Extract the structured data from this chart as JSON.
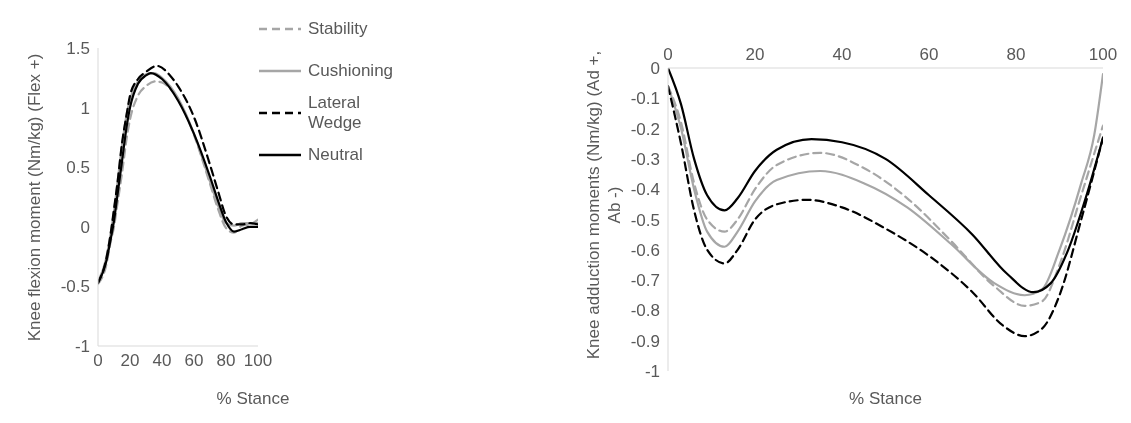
{
  "chart_data": [
    {
      "type": "line",
      "xlabel": "% Stance",
      "ylabel": "Knee flexion moment (Nm/kg) (Flex +)",
      "xlim": [
        0,
        100
      ],
      "xticks": [
        0,
        20,
        40,
        60,
        80,
        100
      ],
      "ylim": [
        -1,
        1.5
      ],
      "yticks": [
        -1,
        -0.5,
        0,
        0.5,
        1,
        1.5
      ],
      "grid": false,
      "legend": "top right",
      "marker": "none",
      "series": [
        {
          "name": "Stability",
          "color": "#a6a6a6",
          "line_style": "dashed",
          "x": [
            0,
            5,
            8,
            10,
            12,
            15,
            18,
            20,
            25,
            30,
            36,
            40,
            50,
            60,
            70,
            75,
            80,
            85,
            90,
            95,
            100
          ],
          "values": [
            -0.48,
            -0.33,
            -0.12,
            0,
            0.18,
            0.45,
            0.75,
            0.9,
            1.1,
            1.18,
            1.22,
            1.21,
            1.07,
            0.77,
            0.36,
            0.15,
            -0.01,
            -0.05,
            0.01,
            0.02,
            0.06
          ]
        },
        {
          "name": "Cushioning",
          "color": "#a6a6a6",
          "line_style": "solid",
          "x": [
            0,
            5,
            8,
            10,
            12,
            15,
            18,
            20,
            25,
            30,
            35,
            40,
            50,
            60,
            70,
            75,
            80,
            85,
            90,
            95,
            100
          ],
          "values": [
            -0.46,
            -0.27,
            -0.05,
            0.13,
            0.35,
            0.68,
            0.95,
            1.07,
            1.22,
            1.28,
            1.29,
            1.25,
            1.08,
            0.78,
            0.38,
            0.18,
            0.03,
            0.01,
            0.03,
            0.03,
            0.03
          ]
        },
        {
          "name": "Lateral Wedge",
          "color": "#000000",
          "line_style": "dashed",
          "x": [
            0,
            5,
            8,
            10,
            12,
            15,
            18,
            20,
            25,
            30,
            37,
            45,
            50,
            60,
            70,
            75,
            80,
            85,
            90,
            95,
            100
          ],
          "values": [
            -0.47,
            -0.28,
            -0.05,
            0.15,
            0.35,
            0.7,
            0.95,
            1.1,
            1.24,
            1.3,
            1.35,
            1.27,
            1.18,
            0.92,
            0.52,
            0.3,
            0.09,
            0.02,
            0.02,
            0.03,
            0.02
          ]
        },
        {
          "name": "Neutral",
          "color": "#000000",
          "line_style": "solid",
          "x": [
            0,
            5,
            8,
            10,
            12,
            15,
            18,
            20,
            25,
            30,
            33,
            40,
            50,
            60,
            70,
            75,
            80,
            85,
            90,
            95,
            100
          ],
          "values": [
            -0.47,
            -0.3,
            -0.1,
            0.05,
            0.25,
            0.55,
            0.85,
            1,
            1.2,
            1.27,
            1.29,
            1.24,
            1.06,
            0.78,
            0.42,
            0.22,
            0.04,
            -0.04,
            -0.02,
            0,
            0
          ]
        }
      ]
    },
    {
      "type": "line",
      "xlabel": "% Stance",
      "ylabel": "Knee adduction moments (Nm/kg) (Ad +, Ab -)",
      "xlim": [
        0,
        100
      ],
      "xticks": [
        0,
        20,
        40,
        60,
        80,
        100
      ],
      "ylim": [
        -1,
        0
      ],
      "yticks": [
        -1,
        -0.9,
        -0.8,
        -0.7,
        -0.6,
        -0.5,
        -0.4,
        -0.3,
        -0.2,
        -0.1,
        0
      ],
      "grid": false,
      "legend": false,
      "marker": "none",
      "series": [
        {
          "color": "#a6a6a6",
          "line_style": "dashed",
          "x": [
            0,
            3,
            6,
            9,
            13,
            16,
            20,
            25,
            35,
            45,
            55,
            65,
            75,
            82,
            86,
            90,
            95,
            100
          ],
          "values": [
            -0.06,
            -0.18,
            -0.38,
            -0.5,
            -0.54,
            -0.5,
            -0.4,
            -0.32,
            -0.28,
            -0.33,
            -0.43,
            -0.57,
            -0.72,
            -0.785,
            -0.77,
            -0.65,
            -0.42,
            -0.19
          ]
        },
        {
          "color": "#a6a6a6",
          "line_style": "solid",
          "x": [
            0,
            3,
            6,
            9,
            13,
            16,
            20,
            25,
            35,
            45,
            55,
            65,
            75,
            82,
            86,
            90,
            95,
            98,
            100
          ],
          "values": [
            -0.06,
            -0.2,
            -0.4,
            -0.54,
            -0.59,
            -0.54,
            -0.44,
            -0.37,
            -0.34,
            -0.38,
            -0.46,
            -0.58,
            -0.71,
            -0.75,
            -0.73,
            -0.6,
            -0.38,
            -0.22,
            -0.02
          ]
        },
        {
          "color": "#000000",
          "line_style": "dashed",
          "x": [
            0,
            3,
            6,
            9,
            13,
            16,
            20,
            25,
            32,
            40,
            50,
            60,
            70,
            77,
            82,
            86,
            90,
            95,
            100
          ],
          "values": [
            -0.06,
            -0.25,
            -0.47,
            -0.6,
            -0.645,
            -0.6,
            -0.5,
            -0.45,
            -0.435,
            -0.46,
            -0.53,
            -0.62,
            -0.74,
            -0.85,
            -0.885,
            -0.86,
            -0.75,
            -0.5,
            -0.23
          ]
        },
        {
          "color": "#000000",
          "line_style": "solid",
          "x": [
            0,
            3,
            6,
            9,
            13,
            16,
            20,
            25,
            33,
            40,
            50,
            60,
            70,
            78,
            84,
            88,
            92,
            96,
            100
          ],
          "values": [
            0,
            -0.12,
            -0.3,
            -0.42,
            -0.47,
            -0.43,
            -0.34,
            -0.27,
            -0.235,
            -0.245,
            -0.3,
            -0.42,
            -0.55,
            -0.68,
            -0.74,
            -0.71,
            -0.6,
            -0.43,
            -0.23
          ]
        }
      ]
    }
  ]
}
